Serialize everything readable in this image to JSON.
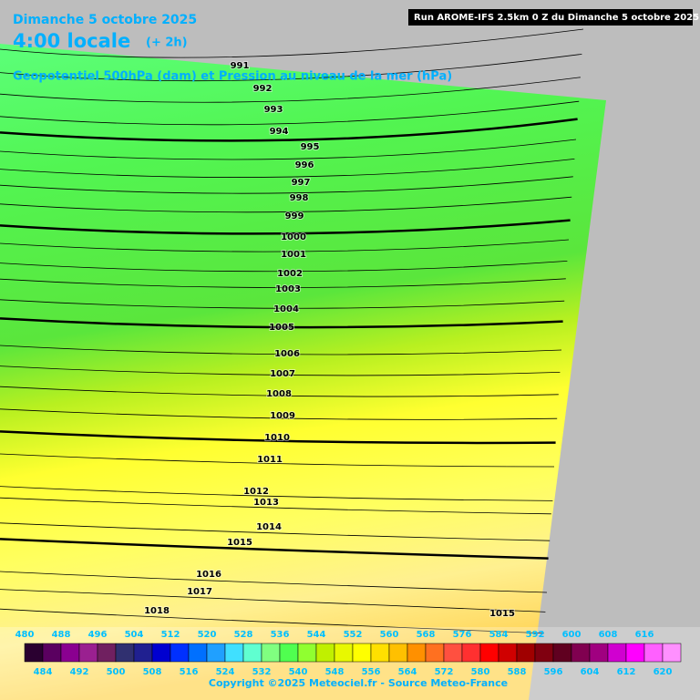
{
  "header": {
    "date": "Dimanche 5 octobre 2025",
    "time": "4:00 locale",
    "offset": "(+ 2h)",
    "run": "Run AROME-IFS 2.5km 0 Z du Dimanche 5 octobre 2025",
    "subtitle": "Geopotentiel 500hPa (dam) et Pression au niveau de la mer (hPa)"
  },
  "isobars": [
    991,
    992,
    993,
    994,
    995,
    996,
    997,
    998,
    999,
    1000,
    1001,
    1002,
    1003,
    1004,
    1005,
    1006,
    1007,
    1008,
    1009,
    1010,
    1011,
    1012,
    1013,
    1014,
    1015,
    1016,
    1017,
    1018,
    1015
  ],
  "colorbar": {
    "values": [
      480,
      484,
      488,
      492,
      496,
      500,
      504,
      508,
      512,
      516,
      520,
      524,
      528,
      532,
      536,
      540,
      544,
      548,
      552,
      556,
      560,
      564,
      568,
      572,
      576,
      580,
      584,
      588,
      592,
      596,
      600,
      604,
      608,
      612,
      616,
      620
    ],
    "colors": [
      "#2a0030",
      "#5a0060",
      "#8a0090",
      "#9a2090",
      "#702060",
      "#303070",
      "#202090",
      "#0000d0",
      "#0030ff",
      "#0070ff",
      "#20a0ff",
      "#40e0ff",
      "#60ffd0",
      "#80ff80",
      "#50ff50",
      "#90ff30",
      "#c0f000",
      "#e8f800",
      "#ffff00",
      "#ffe000",
      "#ffc000",
      "#ff9000",
      "#ff7020",
      "#ff5040",
      "#ff3030",
      "#ff0000",
      "#d00000",
      "#a00000",
      "#800010",
      "#600020",
      "#800050",
      "#a00080",
      "#d000d0",
      "#ff00ff",
      "#ff60ff",
      "#ff90ff"
    ]
  },
  "footer": "Copyright ©2025 Meteociel.fr - Source Meteo-France"
}
